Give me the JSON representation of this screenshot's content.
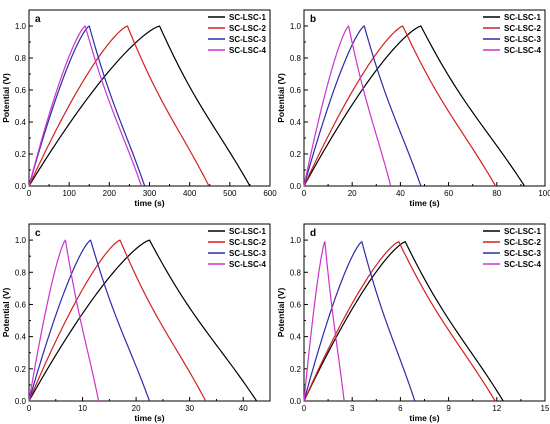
{
  "chart_data": [
    {
      "type": "line",
      "panel": "a",
      "xlabel": "time (s)",
      "ylabel": "Potential (V)",
      "xlim": [
        0,
        600
      ],
      "ylim": [
        0,
        1.1
      ],
      "xticks": [
        0,
        100,
        200,
        300,
        400,
        500,
        600
      ],
      "yticks": [
        0.0,
        0.2,
        0.4,
        0.6,
        0.8,
        1.0
      ],
      "legend_position": "top-right",
      "series": [
        {
          "name": "SC-LSC-1",
          "color": "#000000",
          "peak_time": 325,
          "end_time": 550,
          "max_potential": 1.0
        },
        {
          "name": "SC-LSC-2",
          "color": "#d42020",
          "peak_time": 245,
          "end_time": 448,
          "max_potential": 1.0
        },
        {
          "name": "SC-LSC-3",
          "color": "#2c2ca8",
          "peak_time": 150,
          "end_time": 288,
          "max_potential": 1.0
        },
        {
          "name": "SC-LSC-4",
          "color": "#cc33cc",
          "peak_time": 140,
          "end_time": 280,
          "max_potential": 1.0
        }
      ]
    },
    {
      "type": "line",
      "panel": "b",
      "xlabel": "time (s)",
      "ylabel": "Potential (V)",
      "xlim": [
        0,
        100
      ],
      "ylim": [
        0,
        1.1
      ],
      "xticks": [
        0,
        20,
        40,
        60,
        80,
        100
      ],
      "yticks": [
        0.0,
        0.2,
        0.4,
        0.6,
        0.8,
        1.0
      ],
      "legend_position": "top-right",
      "series": [
        {
          "name": "SC-LSC-1",
          "color": "#000000",
          "peak_time": 48.5,
          "end_time": 91.5,
          "max_potential": 1.0
        },
        {
          "name": "SC-LSC-2",
          "color": "#d42020",
          "peak_time": 41,
          "end_time": 79.5,
          "max_potential": 1.0
        },
        {
          "name": "SC-LSC-3",
          "color": "#2c2ca8",
          "peak_time": 25,
          "end_time": 48.5,
          "max_potential": 1.0
        },
        {
          "name": "SC-LSC-4",
          "color": "#cc33cc",
          "peak_time": 18.5,
          "end_time": 36,
          "max_potential": 1.0
        }
      ]
    },
    {
      "type": "line",
      "panel": "c",
      "xlabel": "time (s)",
      "ylabel": "Potential (V)",
      "xlim": [
        0,
        45
      ],
      "ylim": [
        0,
        1.1
      ],
      "xticks": [
        0,
        10,
        20,
        30,
        40
      ],
      "yticks": [
        0.0,
        0.2,
        0.4,
        0.6,
        0.8,
        1.0
      ],
      "legend_position": "top-right",
      "series": [
        {
          "name": "SC-LSC-1",
          "color": "#000000",
          "peak_time": 22.5,
          "end_time": 42.5,
          "max_potential": 1.0
        },
        {
          "name": "SC-LSC-2",
          "color": "#d42020",
          "peak_time": 17,
          "end_time": 33,
          "max_potential": 1.0
        },
        {
          "name": "SC-LSC-3",
          "color": "#2c2ca8",
          "peak_time": 11.5,
          "end_time": 22.5,
          "max_potential": 1.0
        },
        {
          "name": "SC-LSC-4",
          "color": "#cc33cc",
          "peak_time": 6.8,
          "end_time": 13,
          "max_potential": 1.0
        }
      ]
    },
    {
      "type": "line",
      "panel": "d",
      "xlabel": "time (s)",
      "ylabel": "Potential (V)",
      "xlim": [
        0,
        15
      ],
      "ylim": [
        0,
        1.1
      ],
      "xticks": [
        0,
        3,
        6,
        9,
        12,
        15
      ],
      "yticks": [
        0.0,
        0.2,
        0.4,
        0.6,
        0.8,
        1.0
      ],
      "legend_position": "top-right",
      "series": [
        {
          "name": "SC-LSC-1",
          "color": "#000000",
          "peak_time": 6.3,
          "end_time": 12.4,
          "max_potential": 0.99
        },
        {
          "name": "SC-LSC-2",
          "color": "#d42020",
          "peak_time": 5.9,
          "end_time": 11.9,
          "max_potential": 0.99
        },
        {
          "name": "SC-LSC-3",
          "color": "#2c2ca8",
          "peak_time": 3.6,
          "end_time": 6.9,
          "max_potential": 0.99
        },
        {
          "name": "SC-LSC-4",
          "color": "#cc33cc",
          "peak_time": 1.3,
          "end_time": 2.5,
          "max_potential": 0.99
        }
      ]
    }
  ]
}
